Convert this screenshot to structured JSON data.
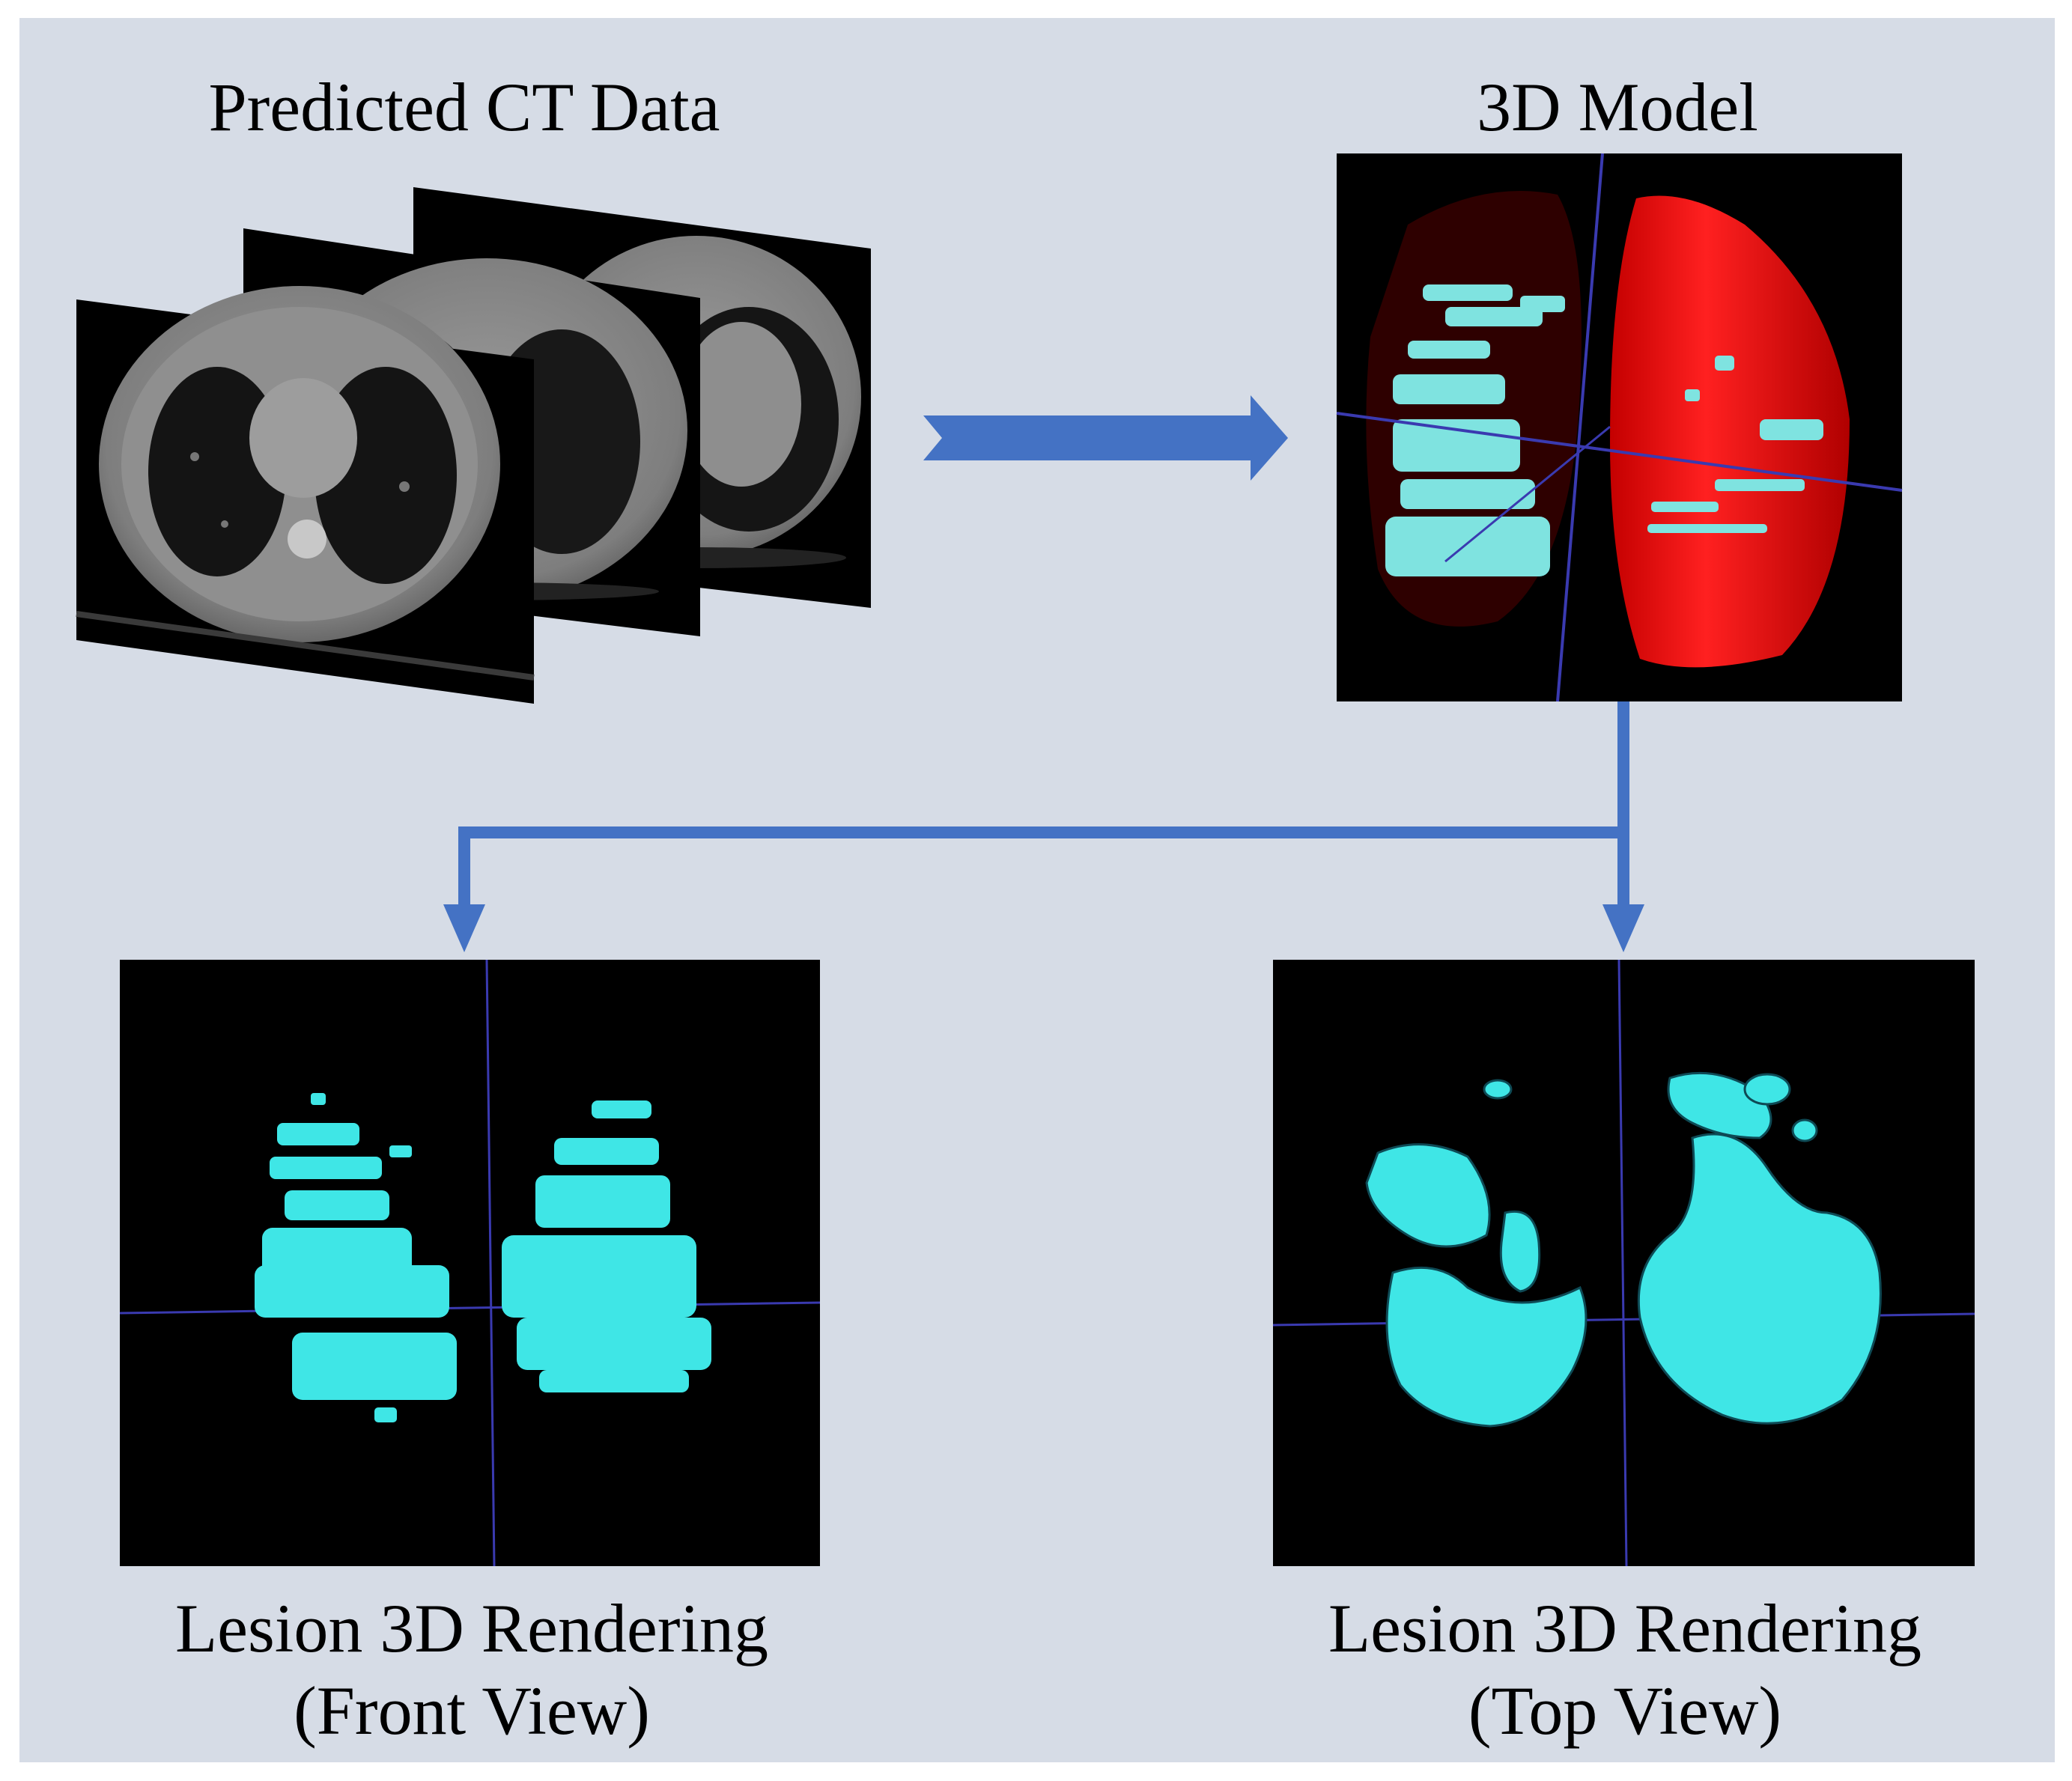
{
  "labels": {
    "ct_title": "Predicted CT Data",
    "model_title": "3D Model",
    "front_title_line1": "Lesion 3D Rendering",
    "front_title_line2": "(Front View)",
    "top_title_line1": "Lesion 3D Rendering",
    "top_title_line2": "(Top View)"
  },
  "colors": {
    "background": "#d6dce6",
    "arrow": "#4472c4",
    "viewport": "#000000",
    "crosshair": "#3a3ab0",
    "lesion": "#3fe6e6",
    "lung": "#ff1010",
    "ct_body": "#8a8a8a"
  }
}
